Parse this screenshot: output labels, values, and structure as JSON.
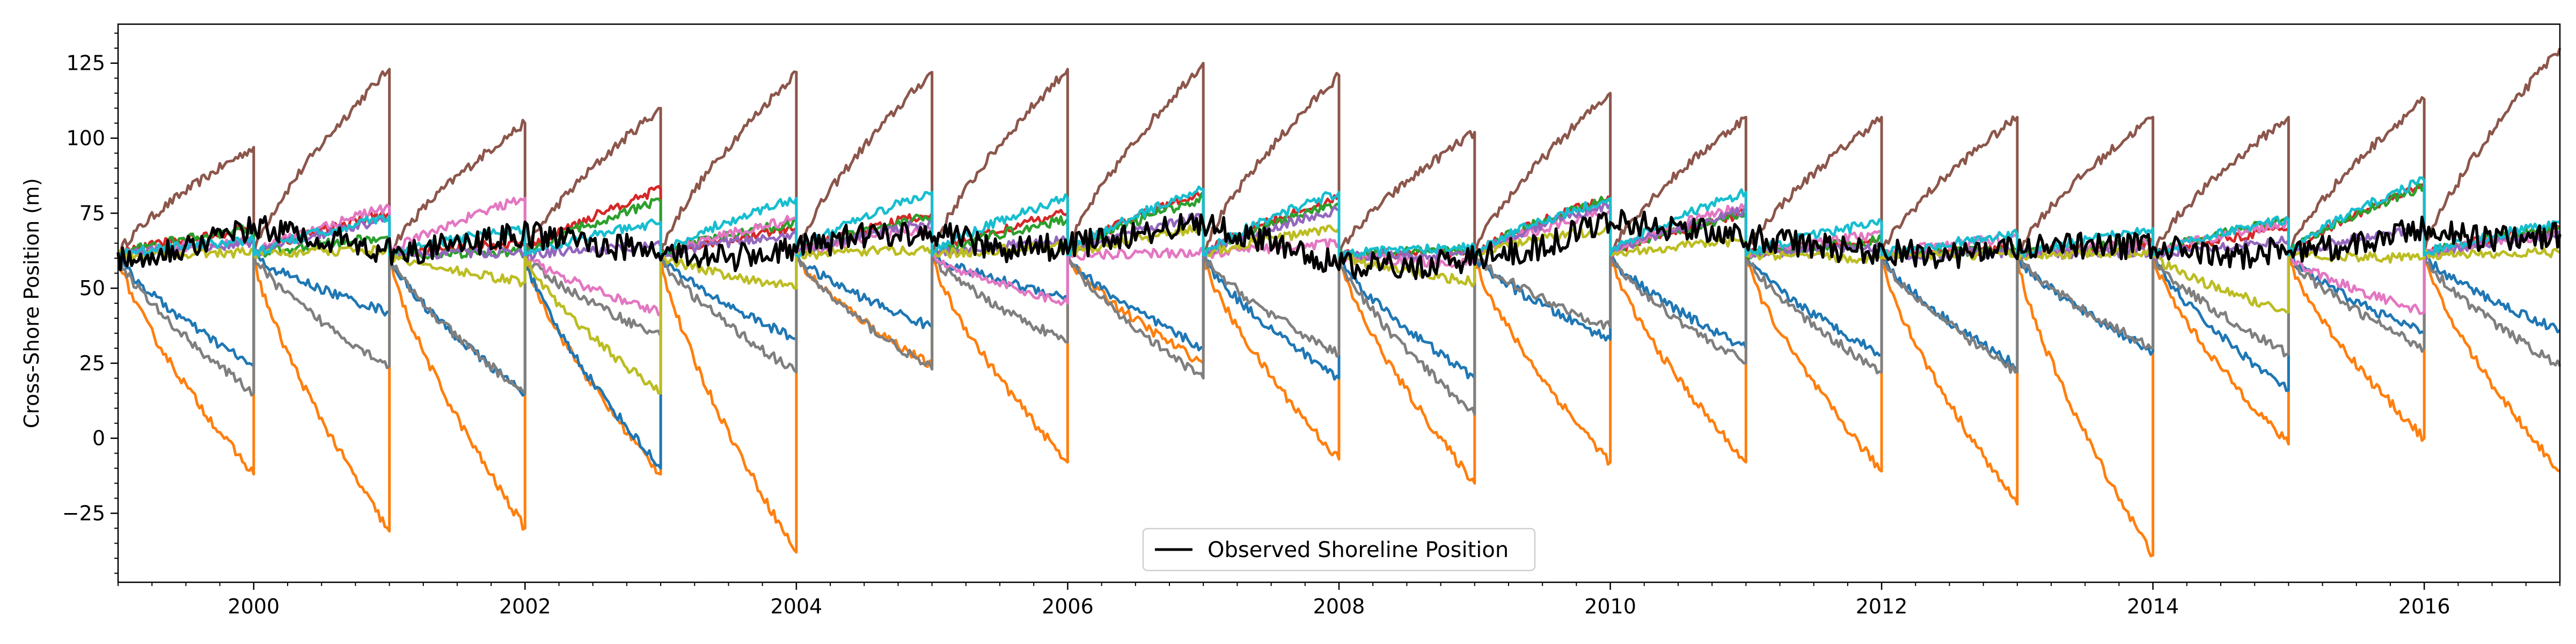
{
  "chart_data": {
    "type": "line",
    "title": "",
    "xlabel": "",
    "ylabel": "Cross-Shore Position (m)",
    "xlim": [
      1999.0,
      2017.0
    ],
    "ylim": [
      -48,
      138
    ],
    "x_ticks": [
      {
        "value": 2000,
        "label": "2000"
      },
      {
        "value": 2002,
        "label": "2002"
      },
      {
        "value": 2004,
        "label": "2004"
      },
      {
        "value": 2006,
        "label": "2006"
      },
      {
        "value": 2008,
        "label": "2008"
      },
      {
        "value": 2010,
        "label": "2010"
      },
      {
        "value": 2012,
        "label": "2012"
      },
      {
        "value": 2014,
        "label": "2014"
      },
      {
        "value": 2016,
        "label": "2016"
      }
    ],
    "y_ticks": [
      {
        "value": 125,
        "label": "125"
      },
      {
        "value": 100,
        "label": "100"
      },
      {
        "value": 75,
        "label": "75"
      },
      {
        "value": 50,
        "label": "50"
      },
      {
        "value": 25,
        "label": "25"
      },
      {
        "value": 0,
        "label": "0"
      },
      {
        "value": -25,
        "label": "−25"
      }
    ],
    "grid": false,
    "legend": {
      "position": "lower-center",
      "entries": [
        {
          "label": "Observed Shoreline Position",
          "color": "#000000"
        }
      ]
    },
    "reset_years": [
      2000,
      2001,
      2002,
      2003,
      2004,
      2005,
      2006,
      2007,
      2008,
      2009,
      2010,
      2011,
      2012,
      2013,
      2014,
      2015,
      2016,
      2017
    ],
    "segment_start": 61,
    "observed": {
      "color": "#000000",
      "values": [
        {
          "x": 1999.0,
          "y": 60
        },
        {
          "x": 1999.5,
          "y": 64
        },
        {
          "x": 2000.0,
          "y": 70
        },
        {
          "x": 2000.5,
          "y": 67
        },
        {
          "x": 2001.0,
          "y": 62
        },
        {
          "x": 2001.5,
          "y": 64
        },
        {
          "x": 2002.0,
          "y": 68
        },
        {
          "x": 2002.5,
          "y": 65
        },
        {
          "x": 2003.0,
          "y": 62
        },
        {
          "x": 2003.5,
          "y": 60
        },
        {
          "x": 2004.0,
          "y": 63
        },
        {
          "x": 2004.5,
          "y": 68
        },
        {
          "x": 2005.0,
          "y": 69
        },
        {
          "x": 2005.5,
          "y": 63
        },
        {
          "x": 2006.0,
          "y": 64
        },
        {
          "x": 2006.5,
          "y": 68
        },
        {
          "x": 2007.0,
          "y": 72
        },
        {
          "x": 2007.5,
          "y": 65
        },
        {
          "x": 2008.0,
          "y": 58
        },
        {
          "x": 2008.5,
          "y": 57
        },
        {
          "x": 2009.0,
          "y": 60
        },
        {
          "x": 2009.5,
          "y": 64
        },
        {
          "x": 2010.0,
          "y": 73
        },
        {
          "x": 2010.5,
          "y": 70
        },
        {
          "x": 2011.0,
          "y": 67
        },
        {
          "x": 2011.5,
          "y": 64
        },
        {
          "x": 2012.0,
          "y": 62
        },
        {
          "x": 2012.5,
          "y": 61
        },
        {
          "x": 2013.0,
          "y": 63
        },
        {
          "x": 2013.5,
          "y": 64
        },
        {
          "x": 2014.0,
          "y": 64
        },
        {
          "x": 2014.5,
          "y": 60
        },
        {
          "x": 2015.0,
          "y": 63
        },
        {
          "x": 2015.5,
          "y": 64
        },
        {
          "x": 2016.0,
          "y": 70
        },
        {
          "x": 2016.5,
          "y": 66
        },
        {
          "x": 2017.0,
          "y": 68
        }
      ]
    },
    "series": [
      {
        "color": "#8c564b",
        "annual_end": [
          97,
          123,
          105,
          110,
          122,
          122,
          123,
          125,
          121,
          102,
          115,
          107,
          107,
          107,
          107,
          107,
          113,
          130
        ]
      },
      {
        "color": "#ff7f0e",
        "annual_end": [
          -12,
          -31,
          -30,
          -12,
          -38,
          24,
          -8,
          25,
          -7,
          -15,
          -8,
          -8,
          -11,
          -22,
          -39,
          -2,
          0,
          -11
        ]
      },
      {
        "color": "#1f77b4",
        "annual_end": [
          24,
          42,
          15,
          -10,
          33,
          37,
          47,
          30,
          20,
          20,
          33,
          30,
          28,
          24,
          29,
          16,
          35,
          36
        ]
      },
      {
        "color": "#7f7f7f",
        "annual_end": [
          15,
          24,
          15,
          34,
          22,
          23,
          32,
          20,
          28,
          8,
          37,
          25,
          22,
          22,
          30,
          28,
          30,
          24
        ]
      },
      {
        "color": "#d62728",
        "annual_end": [
          70,
          75,
          65,
          83,
          70,
          75,
          75,
          82,
          80,
          62,
          80,
          75,
          66,
          63,
          65,
          70,
          84,
          70
        ]
      },
      {
        "color": "#2ca02c",
        "annual_end": [
          70,
          67,
          62,
          79,
          72,
          74,
          73,
          80,
          78,
          63,
          80,
          75,
          66,
          63,
          65,
          73,
          84,
          70
        ]
      },
      {
        "color": "#e377c2",
        "annual_end": [
          66,
          77,
          80,
          42,
          73,
          70,
          45,
          62,
          65,
          58,
          76,
          78,
          68,
          67,
          65,
          72,
          42,
          68
        ]
      },
      {
        "color": "#9467bd",
        "annual_end": [
          65,
          73,
          62,
          64,
          68,
          72,
          66,
          74,
          76,
          61,
          78,
          76,
          64,
          62,
          62,
          66,
          70,
          68
        ]
      },
      {
        "color": "#bcbd22",
        "annual_end": [
          62,
          63,
          52,
          15,
          50,
          63,
          64,
          70,
          70,
          52,
          70,
          66,
          60,
          61,
          62,
          42,
          60,
          62
        ]
      },
      {
        "color": "#17becf",
        "annual_end": [
          66,
          74,
          70,
          72,
          80,
          82,
          80,
          83,
          82,
          64,
          80,
          82,
          72,
          68,
          70,
          73,
          86,
          72
        ]
      }
    ]
  }
}
